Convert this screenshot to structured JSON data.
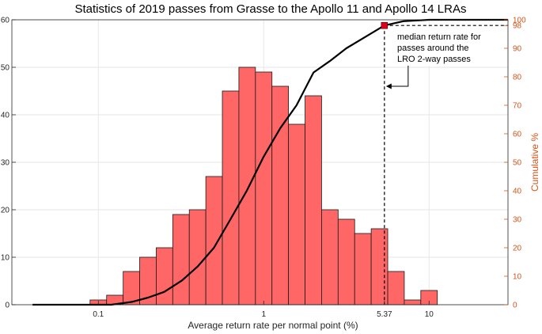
{
  "chart_data": {
    "type": "bar",
    "title": "Statistics of 2019 passes from Grasse to the Apollo 11 and Apollo 14 LRAs",
    "xlabel": "Average return rate per normal point (%)",
    "ylabel_left": "",
    "ylabel_right": "Cumulative %",
    "x_scale": "log",
    "xlim": [
      0.03,
      30
    ],
    "ylim_left": [
      0,
      60
    ],
    "ylim_right": [
      0,
      100
    ],
    "x_ticks": [
      {
        "value": 0.1,
        "label": "0.1"
      },
      {
        "value": 1,
        "label": "1"
      },
      {
        "value": 5.37,
        "label": "5.37"
      },
      {
        "value": 10,
        "label": "10"
      }
    ],
    "y_left_ticks": [
      0,
      10,
      20,
      30,
      40,
      50,
      60
    ],
    "y_right_ticks": [
      0,
      10,
      20,
      30,
      40,
      50,
      60,
      70,
      80,
      90,
      98,
      100
    ],
    "grid": true,
    "bar_color": "#FF6666",
    "curve_color": "#000000",
    "right_axis_color": "#D95319",
    "bars": [
      {
        "x0": 0.0891,
        "x1": 0.1122,
        "count": 1
      },
      {
        "x0": 0.1122,
        "x1": 0.1413,
        "count": 2
      },
      {
        "x0": 0.1413,
        "x1": 0.1778,
        "count": 7
      },
      {
        "x0": 0.1778,
        "x1": 0.2239,
        "count": 10
      },
      {
        "x0": 0.2239,
        "x1": 0.2818,
        "count": 12
      },
      {
        "x0": 0.2818,
        "x1": 0.3548,
        "count": 19
      },
      {
        "x0": 0.3548,
        "x1": 0.4467,
        "count": 20
      },
      {
        "x0": 0.4467,
        "x1": 0.5623,
        "count": 27
      },
      {
        "x0": 0.5623,
        "x1": 0.7079,
        "count": 45
      },
      {
        "x0": 0.7079,
        "x1": 0.8913,
        "count": 50
      },
      {
        "x0": 0.8913,
        "x1": 1.122,
        "count": 49
      },
      {
        "x0": 1.122,
        "x1": 1.4125,
        "count": 46
      },
      {
        "x0": 1.4125,
        "x1": 1.7783,
        "count": 38
      },
      {
        "x0": 1.7783,
        "x1": 2.2387,
        "count": 44
      },
      {
        "x0": 2.2387,
        "x1": 2.8184,
        "count": 20
      },
      {
        "x0": 2.8184,
        "x1": 3.5481,
        "count": 18
      },
      {
        "x0": 3.5481,
        "x1": 4.4668,
        "count": 15
      },
      {
        "x0": 4.4668,
        "x1": 5.6234,
        "count": 16
      },
      {
        "x0": 5.6234,
        "x1": 7.0795,
        "count": 7
      },
      {
        "x0": 7.0795,
        "x1": 8.9125,
        "count": 1
      },
      {
        "x0": 8.9125,
        "x1": 11.2202,
        "count": 3
      }
    ],
    "cumulative": [
      {
        "x": 0.04,
        "y": 0
      },
      {
        "x": 0.12,
        "y": 0
      },
      {
        "x": 0.16,
        "y": 1
      },
      {
        "x": 0.2,
        "y": 2.5
      },
      {
        "x": 0.25,
        "y": 4.5
      },
      {
        "x": 0.32,
        "y": 8.5
      },
      {
        "x": 0.4,
        "y": 13.5
      },
      {
        "x": 0.5,
        "y": 20
      },
      {
        "x": 0.63,
        "y": 30
      },
      {
        "x": 0.79,
        "y": 40
      },
      {
        "x": 1.0,
        "y": 52
      },
      {
        "x": 1.26,
        "y": 62
      },
      {
        "x": 1.58,
        "y": 70
      },
      {
        "x": 2.0,
        "y": 81.5
      },
      {
        "x": 2.51,
        "y": 85.5
      },
      {
        "x": 3.16,
        "y": 90
      },
      {
        "x": 3.98,
        "y": 93.5
      },
      {
        "x": 5.37,
        "y": 98
      },
      {
        "x": 7.0,
        "y": 99.5
      },
      {
        "x": 10,
        "y": 100
      },
      {
        "x": 30,
        "y": 100
      }
    ],
    "marker": {
      "x": 5.37,
      "y": 98,
      "color": "#E0001B"
    },
    "annotation": {
      "lines": [
        "median return rate for",
        "passes around the",
        "LRO 2-way passes"
      ],
      "target_x": 5.37,
      "target_y_left": 46
    }
  }
}
